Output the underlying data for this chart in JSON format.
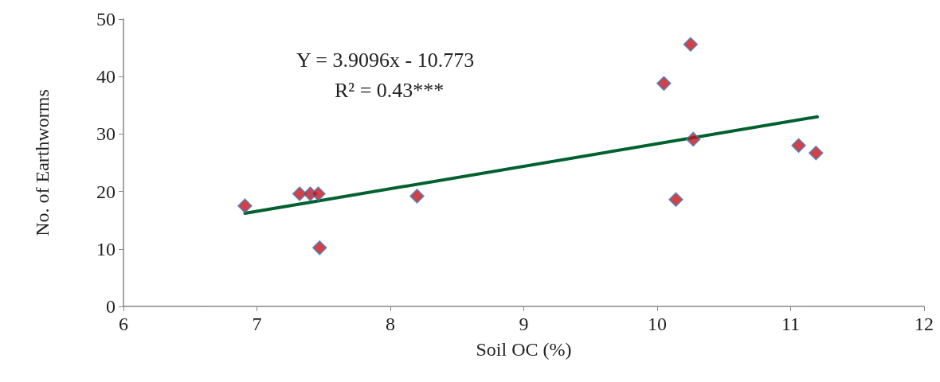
{
  "chart_data": {
    "type": "scatter",
    "xlabel": "Soil OC (%)",
    "ylabel": "No. of Earthworms",
    "annotations": [
      "Y = 3.9096x - 10.773",
      "R² = 0.43***"
    ],
    "series": [
      {
        "color": "#c0141c",
        "marker": "diamond",
        "x": [
          6.91,
          7.32,
          7.4,
          7.46,
          7.47,
          8.2,
          10.05,
          10.25,
          10.14,
          10.27,
          11.06,
          11.19
        ],
        "values": [
          17.5,
          19.6,
          19.6,
          19.6,
          10.2,
          19.2,
          38.8,
          45.6,
          18.6,
          29.1,
          28.0,
          26.7
        ]
      },
      {
        "type": "line",
        "color": "#006030",
        "marker": "none",
        "x": [
          6.91,
          11.2
        ],
        "values": [
          16.2,
          33.0
        ]
      }
    ],
    "xlim": [
      6,
      12
    ],
    "xticks": [
      6,
      7,
      8,
      9,
      10,
      11,
      12
    ],
    "ylim": [
      0,
      50
    ],
    "yticks": [
      0,
      10,
      20,
      30,
      40,
      50
    ],
    "grid": false
  }
}
